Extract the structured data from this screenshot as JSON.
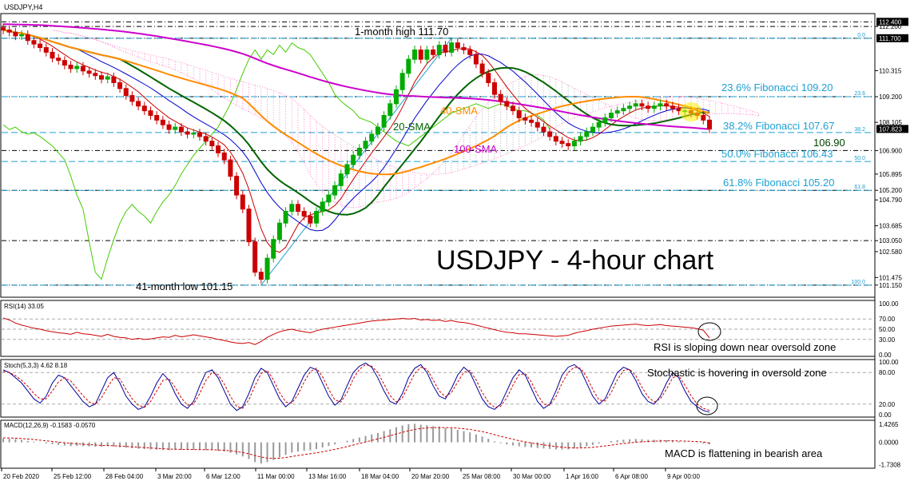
{
  "chart_data": {
    "type": "candlestick",
    "symbol_label": "USDJPY,H4",
    "title": "USDJPY - 4-hour chart",
    "colors": {
      "up_candle": "#00aa00",
      "down_candle": "#cc0000",
      "sma20": "#006400",
      "sma40": "#ff8c00",
      "sma100": "#cc00cc",
      "tenkan": "#cc0000",
      "kijun": "#0000cc",
      "chikou": "#44cc00",
      "cloud": "#ff88cc",
      "cloud_grey": "#b0b0b0",
      "fib": "#1ea0d2",
      "rsi": "#cc0000",
      "stoch_main": "#000099",
      "stoch_signal": "#cc0000",
      "macd_hist": "#999999",
      "macd_signal": "#cc0000",
      "highlight": "#ffee00"
    },
    "price_axis": {
      "min": 100.7,
      "max": 112.65,
      "ticks": [
        "112.200",
        "110.315",
        "109.200",
        "108.105",
        "106.900",
        "105.895",
        "105.200",
        "104.790",
        "103.685",
        "103.050",
        "102.580",
        "101.475",
        "101.150"
      ],
      "tick_values": [
        112.2,
        110.315,
        109.2,
        108.105,
        106.9,
        105.895,
        105.2,
        104.79,
        103.685,
        103.05,
        102.58,
        101.475,
        101.15
      ],
      "highlighted_labels": [
        "112.400",
        "111.700",
        "107.823"
      ],
      "highlighted_values": [
        112.4,
        111.7,
        107.823
      ]
    },
    "horizontal_levels": [
      112.4,
      112.2,
      111.7,
      109.2,
      106.9,
      105.2,
      103.05,
      101.15
    ],
    "fibonacci": [
      {
        "pct": "0.0",
        "value": 111.7,
        "label": ""
      },
      {
        "pct": "23.6",
        "value": 109.2,
        "label": "23.6% Fibonacci 109.20"
      },
      {
        "pct": "38.2",
        "value": 107.67,
        "label": "38.2% Fibonacci 107.67"
      },
      {
        "pct": "50.0",
        "value": 106.43,
        "label": "50.0% Fibonacci 106.43"
      },
      {
        "pct": "61.8",
        "value": 105.2,
        "label": "61.8% Fibonacci 105.20"
      },
      {
        "pct": "100.0",
        "value": 101.15,
        "label": ""
      }
    ],
    "annotations": {
      "high": "1-month high 111.70",
      "low": "41-month low 101.15",
      "sma20": "20-SMA",
      "sma40": "40-SMA",
      "sma100": "100-SMA",
      "level": "106.90"
    },
    "closes": [
      112.05,
      111.96,
      111.8,
      111.85,
      111.6,
      111.45,
      111.3,
      111.1,
      110.85,
      110.75,
      110.55,
      110.4,
      110.5,
      110.3,
      110.2,
      110.1,
      109.95,
      110.05,
      109.8,
      109.55,
      109.25,
      109.0,
      108.8,
      108.6,
      108.4,
      108.2,
      108.0,
      107.8,
      107.9,
      107.7,
      107.6,
      107.65,
      107.5,
      107.3,
      107.1,
      106.8,
      106.5,
      105.8,
      105.0,
      104.4,
      103.0,
      101.7,
      101.4,
      102.3,
      103.1,
      103.8,
      104.3,
      104.6,
      104.3,
      104.1,
      103.8,
      104.3,
      104.7,
      105.0,
      105.4,
      105.9,
      106.3,
      106.7,
      107.0,
      107.3,
      107.6,
      107.9,
      108.4,
      108.9,
      109.5,
      110.2,
      110.8,
      111.2,
      110.8,
      111.2,
      111.0,
      111.4,
      111.1,
      111.5,
      111.3,
      111.2,
      111.0,
      110.6,
      110.2,
      109.8,
      109.3,
      109.0,
      108.8,
      108.6,
      108.3,
      108.2,
      108.1,
      107.9,
      107.7,
      107.5,
      107.3,
      107.2,
      107.1,
      107.3,
      107.5,
      107.7,
      107.9,
      108.1,
      108.3,
      108.5,
      108.6,
      108.7,
      108.8,
      108.9,
      108.8,
      108.7,
      108.8,
      108.9,
      108.8,
      108.7,
      108.6,
      108.6,
      108.5,
      108.4,
      108.2,
      107.82
    ],
    "rsi": {
      "label": "RSI(14) 33.05",
      "min": 0,
      "max": 100,
      "ticks": [
        "100.00",
        "70.00",
        "50.00",
        "30.00",
        "0.00"
      ],
      "tick_values": [
        100,
        70,
        50,
        30,
        0
      ],
      "values": [
        72,
        68,
        62,
        58,
        55,
        52,
        50,
        47,
        45,
        43,
        42,
        40,
        44,
        41,
        40,
        38,
        36,
        40,
        36,
        34,
        33,
        30,
        32,
        30,
        31,
        33,
        35,
        34,
        38,
        35,
        37,
        39,
        37,
        35,
        33,
        30,
        28,
        25,
        23,
        22,
        24,
        20,
        26,
        34,
        40,
        45,
        48,
        50,
        47,
        45,
        43,
        47,
        50,
        52,
        54,
        56,
        58,
        60,
        62,
        64,
        66,
        67,
        68,
        69,
        70,
        71,
        70,
        71,
        68,
        69,
        67,
        68,
        65,
        67,
        64,
        63,
        61,
        58,
        55,
        52,
        49,
        46,
        44,
        43,
        41,
        41,
        40,
        39,
        38,
        37,
        36,
        37,
        38,
        42,
        45,
        47,
        50,
        52,
        54,
        56,
        57,
        58,
        59,
        60,
        58,
        57,
        58,
        59,
        57,
        56,
        55,
        54,
        53,
        51,
        48,
        33
      ]
    },
    "stoch": {
      "label": "Stoch(5,3,3) 4.62 8.18",
      "min": 0,
      "max": 100,
      "ticks": [
        "100.00",
        "80.00",
        "20.00",
        "0.00"
      ],
      "tick_values": [
        100,
        80,
        20,
        0
      ],
      "main": [
        85,
        80,
        70,
        60,
        45,
        30,
        22,
        35,
        60,
        75,
        70,
        55,
        40,
        25,
        15,
        20,
        45,
        70,
        80,
        60,
        35,
        20,
        10,
        15,
        35,
        60,
        78,
        65,
        40,
        20,
        12,
        25,
        55,
        80,
        85,
        70,
        45,
        20,
        8,
        15,
        40,
        70,
        88,
        80,
        55,
        30,
        15,
        25,
        50,
        75,
        90,
        85,
        60,
        35,
        18,
        28,
        55,
        80,
        92,
        98,
        90,
        70,
        45,
        25,
        20,
        40,
        70,
        88,
        95,
        80,
        55,
        35,
        30,
        50,
        75,
        90,
        80,
        55,
        30,
        15,
        10,
        20,
        45,
        70,
        85,
        75,
        50,
        25,
        12,
        20,
        45,
        75,
        90,
        95,
        85,
        60,
        35,
        20,
        30,
        55,
        80,
        90,
        85,
        65,
        40,
        25,
        20,
        35,
        60,
        80,
        70,
        45,
        25,
        15,
        8,
        4.62
      ],
      "signal": [
        82,
        80,
        74,
        65,
        54,
        40,
        30,
        30,
        45,
        62,
        70,
        64,
        50,
        36,
        24,
        20,
        32,
        52,
        70,
        68,
        48,
        30,
        18,
        14,
        25,
        45,
        65,
        68,
        52,
        32,
        18,
        20,
        40,
        65,
        80,
        76,
        58,
        35,
        16,
        12,
        28,
        55,
        78,
        84,
        66,
        42,
        24,
        22,
        38,
        62,
        82,
        88,
        72,
        48,
        28,
        24,
        42,
        68,
        86,
        95,
        92,
        80,
        58,
        36,
        24,
        32,
        55,
        78,
        90,
        86,
        66,
        45,
        34,
        42,
        62,
        80,
        84,
        66,
        42,
        24,
        14,
        16,
        32,
        56,
        76,
        78,
        62,
        38,
        20,
        18,
        34,
        60,
        80,
        90,
        88,
        72,
        48,
        28,
        26,
        42,
        66,
        84,
        86,
        74,
        52,
        34,
        24,
        30,
        48,
        70,
        74,
        56,
        36,
        20,
        12,
        8.18
      ]
    },
    "macd": {
      "label": "MACD(12,26,9) -0.1583 -0.0570",
      "ticks": [
        "1.4265",
        "0.0000",
        "-1.7308"
      ],
      "tick_values": [
        1.4265,
        0,
        -1.7308
      ],
      "min": -1.9,
      "max": 1.6,
      "hist": [
        0.3,
        0.28,
        0.25,
        0.2,
        0.12,
        0.05,
        -0.02,
        -0.08,
        -0.15,
        -0.2,
        -0.25,
        -0.3,
        -0.28,
        -0.3,
        -0.32,
        -0.33,
        -0.35,
        -0.3,
        -0.33,
        -0.38,
        -0.42,
        -0.46,
        -0.5,
        -0.52,
        -0.55,
        -0.58,
        -0.6,
        -0.62,
        -0.58,
        -0.6,
        -0.6,
        -0.58,
        -0.58,
        -0.6,
        -0.62,
        -0.66,
        -0.72,
        -0.82,
        -0.95,
        -1.1,
        -1.3,
        -1.55,
        -1.65,
        -1.55,
        -1.38,
        -1.18,
        -0.98,
        -0.8,
        -0.72,
        -0.66,
        -0.62,
        -0.52,
        -0.4,
        -0.28,
        -0.16,
        -0.02,
        0.12,
        0.26,
        0.38,
        0.5,
        0.62,
        0.74,
        0.88,
        1.02,
        1.18,
        1.32,
        1.42,
        1.45,
        1.38,
        1.34,
        1.26,
        1.22,
        1.12,
        1.08,
        0.98,
        0.88,
        0.78,
        0.62,
        0.46,
        0.28,
        0.08,
        -0.06,
        -0.16,
        -0.24,
        -0.32,
        -0.36,
        -0.4,
        -0.44,
        -0.48,
        -0.52,
        -0.56,
        -0.56,
        -0.55,
        -0.48,
        -0.4,
        -0.3,
        -0.2,
        -0.1,
        0.0,
        0.1,
        0.16,
        0.2,
        0.24,
        0.26,
        0.24,
        0.2,
        0.2,
        0.2,
        0.16,
        0.12,
        0.08,
        0.04,
        0.0,
        -0.04,
        -0.1,
        -0.1583
      ],
      "signal": [
        0.35,
        0.34,
        0.32,
        0.3,
        0.26,
        0.22,
        0.17,
        0.12,
        0.07,
        0.02,
        -0.03,
        -0.08,
        -0.12,
        -0.15,
        -0.18,
        -0.21,
        -0.24,
        -0.25,
        -0.27,
        -0.29,
        -0.32,
        -0.35,
        -0.38,
        -0.41,
        -0.44,
        -0.47,
        -0.5,
        -0.53,
        -0.54,
        -0.55,
        -0.56,
        -0.56,
        -0.57,
        -0.57,
        -0.58,
        -0.6,
        -0.62,
        -0.66,
        -0.72,
        -0.8,
        -0.9,
        -1.03,
        -1.15,
        -1.23,
        -1.26,
        -1.24,
        -1.19,
        -1.11,
        -1.03,
        -0.96,
        -0.89,
        -0.82,
        -0.74,
        -0.65,
        -0.55,
        -0.45,
        -0.33,
        -0.21,
        -0.09,
        0.03,
        0.15,
        0.27,
        0.39,
        0.52,
        0.65,
        0.78,
        0.91,
        1.01,
        1.08,
        1.13,
        1.15,
        1.16,
        1.15,
        1.14,
        1.11,
        1.06,
        1.01,
        0.93,
        0.84,
        0.73,
        0.6,
        0.47,
        0.35,
        0.24,
        0.13,
        0.04,
        -0.05,
        -0.13,
        -0.2,
        -0.27,
        -0.33,
        -0.38,
        -0.42,
        -0.44,
        -0.44,
        -0.42,
        -0.39,
        -0.34,
        -0.28,
        -0.22,
        -0.15,
        -0.09,
        -0.04,
        0.01,
        0.04,
        0.07,
        0.09,
        0.11,
        0.12,
        0.12,
        0.11,
        0.1,
        0.08,
        0.06,
        0.03,
        -0.057
      ]
    },
    "x_axis_labels": [
      "20 Feb 2020",
      "25 Feb 12:00",
      "28 Feb 04:00",
      "3 Mar 20:00",
      "6 Mar 12:00",
      "11 Mar 00:00",
      "13 Mar 16:00",
      "18 Mar 04:00",
      "20 Mar 20:00",
      "25 Mar 08:00",
      "30 Mar 00:00",
      "1 Apr 16:00",
      "6 Apr 08:00",
      "9 Apr 00:00"
    ],
    "panel_notes": {
      "rsi": "RSI is sloping down near oversold zone",
      "stoch": "Stochastic is hovering in oversold zone",
      "macd": "MACD is flattening in bearish area"
    }
  }
}
